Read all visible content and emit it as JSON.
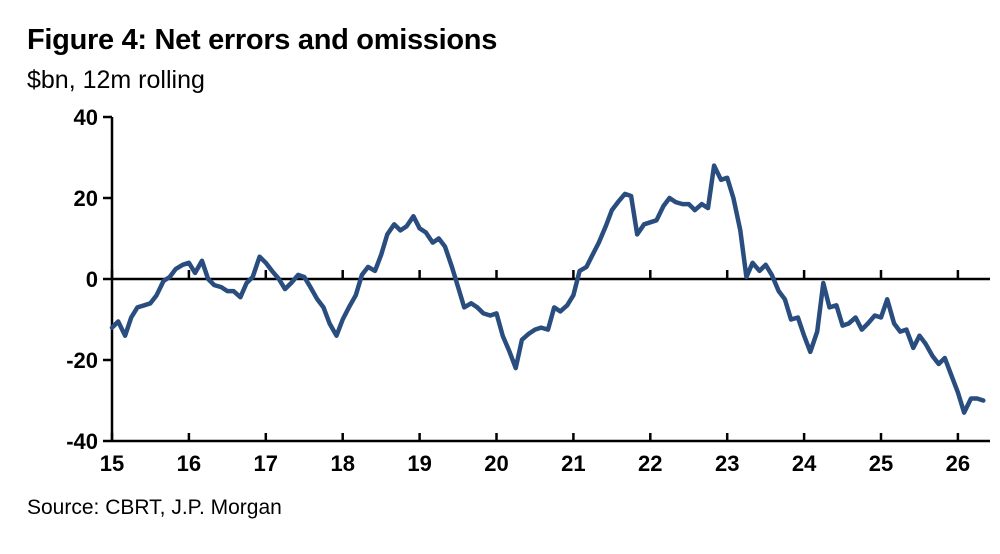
{
  "title": "Figure 4: Net errors and omissions",
  "subtitle": "$bn, 12m rolling",
  "source": "Source: CBRT, J.P. Morgan",
  "colors": {
    "line": "#2a4d7f",
    "axis": "#000000"
  },
  "chart_data": {
    "type": "line",
    "title": "Figure 4: Net errors and omissions",
    "ylabel": "$bn, 12m rolling",
    "ylim": [
      -40,
      40
    ],
    "xlim": [
      15,
      26.4
    ],
    "yticks": [
      40,
      20,
      0,
      -20,
      -40
    ],
    "xticks": [
      15,
      16,
      17,
      18,
      19,
      20,
      21,
      22,
      23,
      24,
      25,
      26
    ],
    "xtick_labels": [
      "15",
      "16",
      "17",
      "18",
      "19",
      "20",
      "21",
      "22",
      "23",
      "24",
      "25",
      "26"
    ],
    "ytick_labels": [
      "40",
      "20",
      "0",
      "-20",
      "-40"
    ],
    "grid": false,
    "series": [
      {
        "x": [
          15.0,
          15.08,
          15.17,
          15.25,
          15.33,
          15.42,
          15.5,
          15.58,
          15.67,
          15.75,
          15.83,
          15.92,
          16.0,
          16.08,
          16.17,
          16.25,
          16.33,
          16.42,
          16.5,
          16.58,
          16.67,
          16.75,
          16.83,
          16.92,
          17.0,
          17.08,
          17.17,
          17.25,
          17.33,
          17.42,
          17.5,
          17.58,
          17.67,
          17.75,
          17.83,
          17.92,
          18.0,
          18.08,
          18.17,
          18.25,
          18.33,
          18.42,
          18.5,
          18.58,
          18.67,
          18.75,
          18.83,
          18.92,
          19.0,
          19.08,
          19.17,
          19.25,
          19.33,
          19.42,
          19.5,
          19.58,
          19.67,
          19.75,
          19.83,
          19.92,
          20.0,
          20.08,
          20.17,
          20.25,
          20.33,
          20.42,
          20.5,
          20.58,
          20.67,
          20.75,
          20.83,
          20.92,
          21.0,
          21.08,
          21.17,
          21.25,
          21.33,
          21.42,
          21.5,
          21.58,
          21.67,
          21.75,
          21.83,
          21.92,
          22.0,
          22.08,
          22.17,
          22.25,
          22.33,
          22.42,
          22.5,
          22.58,
          22.67,
          22.75,
          22.83,
          22.92,
          23.0,
          23.08,
          23.17,
          23.25,
          23.33,
          23.42,
          23.5,
          23.58,
          23.67,
          23.75,
          23.83,
          23.92,
          24.0,
          24.08,
          24.17,
          24.25,
          24.33,
          24.42,
          24.5,
          24.58,
          24.67,
          24.75,
          24.83,
          24.92,
          25.0,
          25.08,
          25.17,
          25.25,
          25.33,
          25.42,
          25.5,
          25.58,
          25.67,
          25.75,
          25.83,
          25.92,
          26.0,
          26.08,
          26.17,
          26.25,
          26.33
        ],
        "y": [
          -12,
          -10.5,
          -14,
          -9.5,
          -7,
          -6.5,
          -6,
          -4,
          -0.5,
          0.5,
          2.5,
          3.5,
          4,
          1.5,
          4.5,
          0,
          -1.5,
          -2,
          -3,
          -3,
          -4.5,
          -1,
          0.5,
          5.5,
          4,
          2,
          0,
          -2.5,
          -1,
          1,
          0.5,
          -2,
          -5,
          -7,
          -11,
          -14,
          -10,
          -7,
          -4,
          1,
          3,
          2,
          6,
          11,
          13.5,
          12,
          13,
          15.5,
          12.5,
          11.5,
          9,
          10,
          8,
          3,
          -2,
          -7,
          -6,
          -7,
          -8.5,
          -9,
          -8.5,
          -14,
          -18,
          -22,
          -15,
          -13.5,
          -12.5,
          -12,
          -12.5,
          -7,
          -8,
          -6.5,
          -4,
          2,
          3,
          6,
          9,
          13,
          17,
          19,
          21,
          20.5,
          11,
          13.5,
          14,
          14.5,
          18,
          20,
          19,
          18.5,
          18.5,
          17,
          18.5,
          17.5,
          28,
          24.5,
          25,
          20,
          12,
          0.5,
          4,
          2,
          3.5,
          1,
          -3,
          -5,
          -10,
          -9.5,
          -14,
          -18,
          -13,
          -1,
          -7,
          -6.5,
          -11.5,
          -11,
          -9.5,
          -12.5,
          -11,
          -9,
          -9.5,
          -5,
          -11,
          -13,
          -12.5,
          -17,
          -14,
          -16,
          -19,
          -21,
          -19.5,
          -24,
          -28,
          -33,
          -29.5,
          -29.5,
          -30
        ]
      }
    ]
  }
}
